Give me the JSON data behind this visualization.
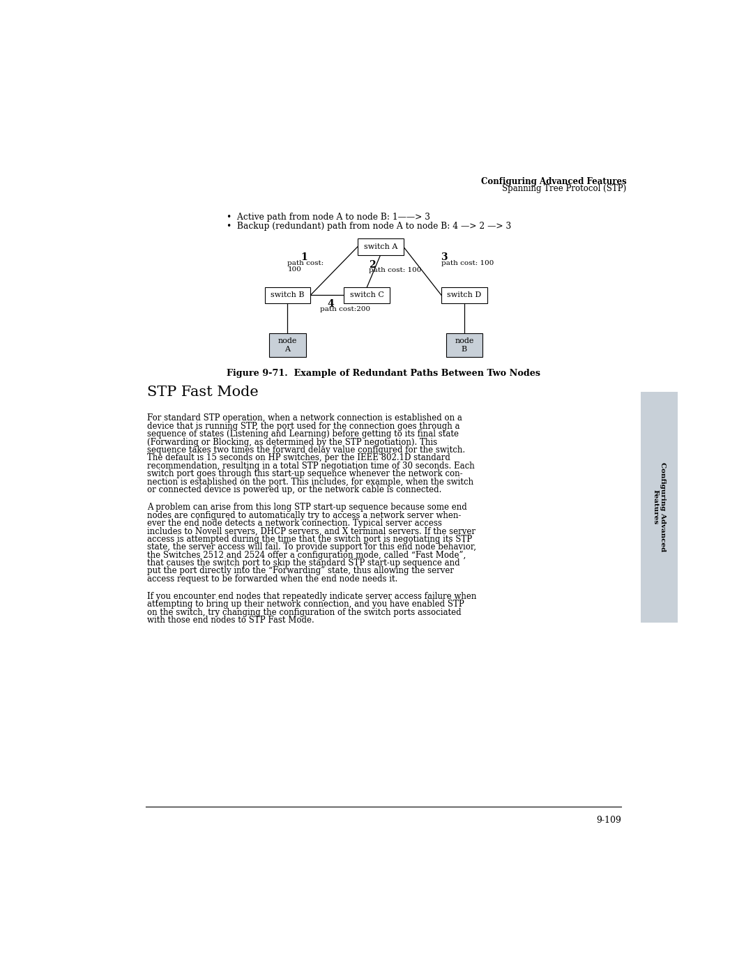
{
  "page_width": 10.8,
  "page_height": 13.97,
  "bg_color": "#ffffff",
  "header_bold": "Configuring Advanced Features",
  "header_normal": "Spanning Tree Protocol (STP)",
  "bullet1": "•  Active path from node A to node B: 1——> 3",
  "bullet2": "•  Backup (redundant) path from node A to node B: 4 —> 2 —> 3",
  "figure_caption": "Figure 9-71.  Example of Redundant Paths Between Two Nodes",
  "section_title": "STP Fast Mode",
  "para1_lines": [
    "For standard STP operation, when a network connection is established on a",
    "device that is running STP, the port used for the connection goes through a",
    "sequence of states (Listening and Learning) before getting to its final state",
    "(Forwarding or Blocking, as determined by the STP negotiation). This",
    "sequence takes two times the forward delay value configured for the switch.",
    "The default is 15 seconds on HP switches, per the IEEE 802.1D standard",
    "recommendation, resulting in a total STP negotiation time of 30 seconds. Each",
    "switch port goes through this start-up sequence whenever the network con-",
    "nection is established on the port. This includes, for example, when the switch",
    "or connected device is powered up, or the network cable is connected."
  ],
  "para2_lines": [
    "A problem can arise from this long STP start-up sequence because some end",
    "nodes are configured to automatically try to access a network server when-",
    "ever the end node detects a network connection. Typical server access",
    "includes to Novell servers, DHCP servers, and X terminal servers. If the server",
    "access is attempted during the time that the switch port is negotiating its STP",
    "state, the server access will fail. To provide support for this end node behavior,",
    "the Switches 2512 and 2524 offer a configuration mode, called “Fast Mode”,",
    "that causes the switch port to skip the standard STP start-up sequence and",
    "put the port directly into the “Forwarding” state, thus allowing the server",
    "access request to be forwarded when the end node needs it."
  ],
  "para3_lines": [
    "If you encounter end nodes that repeatedly indicate server access failure when",
    "attempting to bring up their network connection, and you have enabled STP",
    "on the switch, try changing the configuration of the switch ports associated",
    "with those end nodes to STP Fast Mode."
  ],
  "page_number": "9-109",
  "sidebar_text": "Configuring Advanced\nFeatures",
  "sidebar_bg": "#c8d0d8",
  "node_bg": "#c8d0d8",
  "switch_bg": "#ffffff",
  "line_color": "#000000",
  "text_color": "#000000"
}
